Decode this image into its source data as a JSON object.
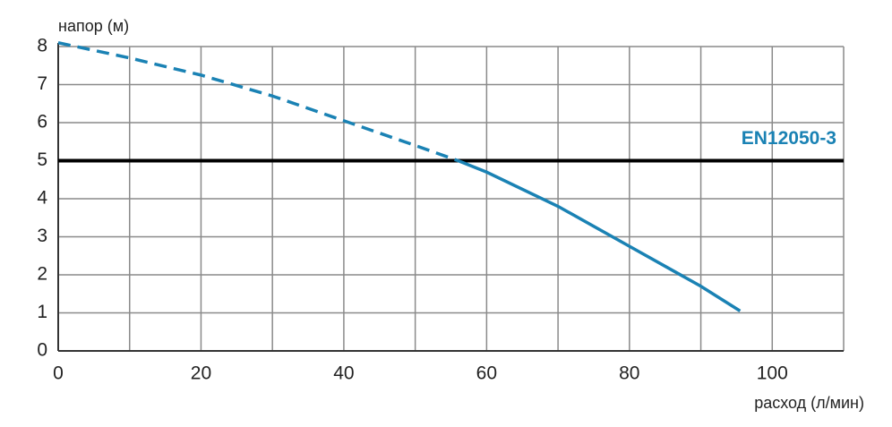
{
  "chart_data": {
    "type": "line",
    "ylabel": "напор (м)",
    "xlabel": "расход (л/мин)",
    "x": [
      0,
      10,
      20,
      30,
      40,
      50,
      56,
      60,
      70,
      80,
      90,
      95.5
    ],
    "series": [
      {
        "color": "#1a82b4",
        "dashed": true,
        "values": [
          8.1,
          7.7,
          7.25,
          6.7,
          6.05,
          5.4,
          5.0,
          null,
          null,
          null,
          null,
          null
        ]
      },
      {
        "color": "#1a82b4",
        "dashed": false,
        "values": [
          null,
          null,
          null,
          null,
          null,
          null,
          5.0,
          4.7,
          3.8,
          2.75,
          1.7,
          1.05
        ]
      }
    ],
    "xlim": [
      0,
      110
    ],
    "xticks": [
      0,
      20,
      40,
      60,
      80,
      100
    ],
    "xminor_ticks": [
      10,
      30,
      50,
      70,
      90,
      110
    ],
    "ylim": [
      0,
      8
    ],
    "yticks": [
      0,
      1,
      2,
      3,
      4,
      5,
      6,
      7,
      8
    ],
    "grid": true,
    "hline": {
      "value": 5,
      "label": "EN12050-3",
      "color": "#000000",
      "label_color": "#1a82b4"
    }
  }
}
